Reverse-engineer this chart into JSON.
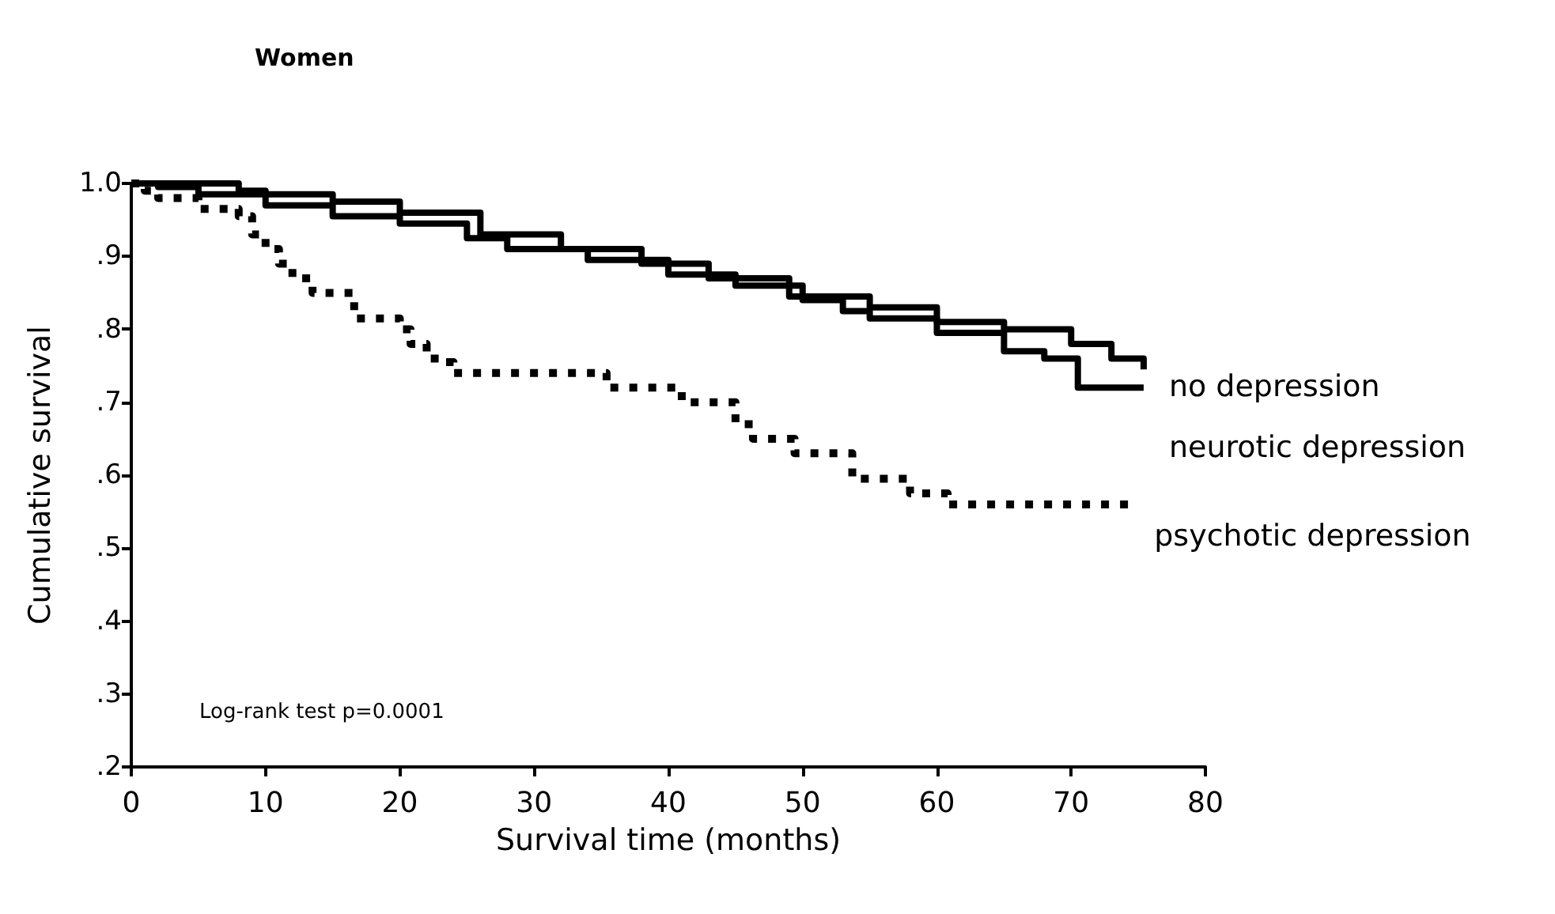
{
  "chart_data": {
    "type": "step",
    "title": "Women",
    "xlabel": "Survival time (months)",
    "ylabel": "Cumulative survival",
    "annotations": [
      "Log-rank test p=0.0001"
    ],
    "xlim": [
      0,
      80
    ],
    "xticks": [
      0,
      10,
      20,
      30,
      40,
      50,
      60,
      70,
      80
    ],
    "ylim": [
      0.2,
      1.0
    ],
    "yticks": [
      {
        "value": 0.2,
        "label": ".2"
      },
      {
        "value": 0.3,
        "label": ".3"
      },
      {
        "value": 0.4,
        "label": ".4"
      },
      {
        "value": 0.5,
        "label": ".5"
      },
      {
        "value": 0.6,
        "label": ".6"
      },
      {
        "value": 0.7,
        "label": ".7"
      },
      {
        "value": 0.8,
        "label": ".8"
      },
      {
        "value": 0.9,
        "label": ".9"
      },
      {
        "value": 1.0,
        "label": "1.0"
      }
    ],
    "grid": false,
    "legend": false,
    "marker": "none",
    "series": [
      {
        "name": "no depression",
        "color": "#000000",
        "line_style": "solid",
        "x": [
          0,
          8,
          10,
          15,
          20,
          26,
          32,
          38,
          43,
          49,
          55,
          60,
          65,
          70,
          73,
          75.4
        ],
        "values": [
          1.0,
          0.99,
          0.985,
          0.975,
          0.96,
          0.93,
          0.91,
          0.89,
          0.87,
          0.845,
          0.83,
          0.81,
          0.8,
          0.78,
          0.76,
          0.745
        ]
      },
      {
        "name": "neurotic depression",
        "color": "#000000",
        "line_style": "solid",
        "x": [
          0,
          2,
          5,
          10,
          15,
          20,
          25,
          28,
          34,
          40,
          45,
          50,
          53,
          55,
          60,
          65,
          68,
          70.5,
          75.4
        ],
        "values": [
          1.0,
          0.995,
          0.985,
          0.97,
          0.955,
          0.945,
          0.925,
          0.91,
          0.895,
          0.875,
          0.86,
          0.84,
          0.825,
          0.815,
          0.795,
          0.77,
          0.76,
          0.72,
          0.72
        ]
      },
      {
        "name": "psychotic depression",
        "color": "#000000",
        "line_style": "dotted",
        "x": [
          0,
          1,
          2,
          5,
          8,
          9,
          10,
          11,
          12,
          13.5,
          16.6,
          20,
          20.8,
          22,
          23,
          24,
          35.4,
          41,
          45,
          46.3,
          49.4,
          53.7,
          58,
          60.8,
          74.3
        ],
        "values": [
          1.0,
          0.99,
          0.98,
          0.965,
          0.955,
          0.93,
          0.91,
          0.89,
          0.87,
          0.85,
          0.815,
          0.8,
          0.78,
          0.76,
          0.755,
          0.74,
          0.72,
          0.7,
          0.67,
          0.65,
          0.63,
          0.595,
          0.575,
          0.56,
          0.56
        ]
      }
    ]
  }
}
